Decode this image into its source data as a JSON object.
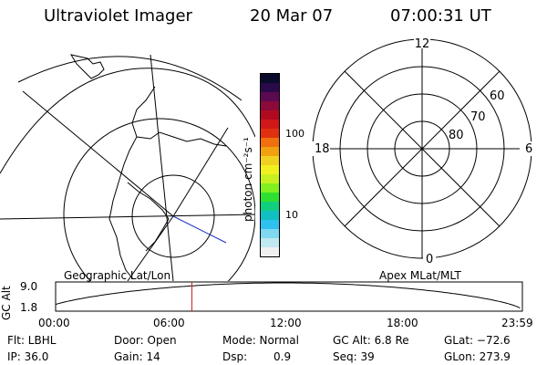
{
  "header": {
    "title": "Ultraviolet Imager",
    "date": "20 Mar 07",
    "time": "07:00:31 UT"
  },
  "left_panel": {
    "label": "Geographic Lat/Lon"
  },
  "colorbar": {
    "unit": "photon cm⁻²s⁻¹",
    "ticks": [
      "100",
      "10"
    ],
    "colors": [
      "#0a0a2a",
      "#2a0a4a",
      "#5a0a50",
      "#8a0a3a",
      "#b00a20",
      "#d01818",
      "#e03010",
      "#f07010",
      "#f0a010",
      "#f0d020",
      "#f0f020",
      "#c8f020",
      "#80f020",
      "#30e030",
      "#10d080",
      "#10c0c0",
      "#30c0f0",
      "#80d8f0",
      "#c0e8f0",
      "#f0f0f0"
    ]
  },
  "right_panel": {
    "label": "Apex MLat/MLT",
    "mlt_labels": {
      "top": "12",
      "left": "18",
      "right": "6",
      "bottom": "0"
    },
    "lat_labels": [
      "60",
      "70",
      "80"
    ]
  },
  "timeline": {
    "ylabel": "GC Alt",
    "ymax": "9.0",
    "ymin": "1.8",
    "ticks": [
      "00:00",
      "06:00",
      "12:00",
      "18:00",
      "23:59"
    ],
    "current_marker_hours": 7.008
  },
  "info": {
    "flt": "Flt: LBHL",
    "door": "Door: Open",
    "mode": "Mode: Normal",
    "gc_alt": "GC Alt: 6.8 Re",
    "glat": "GLat: −72.6",
    "ip": "IP: 36.0",
    "gain": "Gain: 14",
    "dsp_label": "Dsp:",
    "dsp_value": "0.9",
    "seq": "Seq: 39",
    "glon": "GLon: 273.9"
  },
  "colors": {
    "marker": "#d02020",
    "meridian": "#2030c0"
  }
}
